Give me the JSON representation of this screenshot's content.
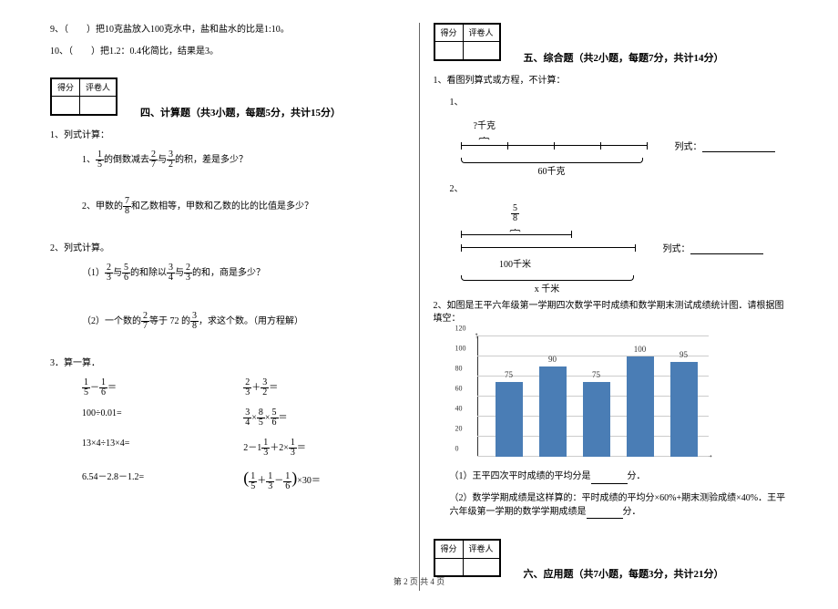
{
  "l": {
    "q9": "9、（　　）把10克盐放入100克水中，盐和盐水的比是1:10。",
    "q10": "10、（　　）把1.2：0.4化简比，结果是3。",
    "score_h1": "得分",
    "score_h2": "评卷人",
    "s4": "四、计算题（共3小题，每题5分，共计15分）",
    "p1": "1、列式计算：",
    "p1_1a": "1、",
    "p1_1b": "的倒数减去",
    "p1_1c": "与",
    "p1_1d": "的积，差是多少？",
    "f1": {
      "n": "1",
      "d": "5"
    },
    "f2": {
      "n": "2",
      "d": "7"
    },
    "f3": {
      "n": "3",
      "d": "2"
    },
    "p1_2a": "2、甲数的",
    "p1_2b": "和乙数相等，甲数和乙数的比的比值是多少？",
    "f4": {
      "n": "7",
      "d": "8"
    },
    "p2": "2、列式计算。",
    "p2_1a": "（1）",
    "p2_1b": "与",
    "p2_1c": "的和除以",
    "p2_1d": "与",
    "p2_1e": "的和，商是多少？",
    "f5": {
      "n": "2",
      "d": "3"
    },
    "f6": {
      "n": "5",
      "d": "6"
    },
    "f7": {
      "n": "3",
      "d": "4"
    },
    "f8": {
      "n": "2",
      "d": "3"
    },
    "p2_2a": "（2）一个数的",
    "p2_2b": "等于 72 的",
    "p2_2c": "，求这个数。（用方程解）",
    "f9": {
      "n": "2",
      "d": "7"
    },
    "f10": {
      "n": "3",
      "d": "8"
    },
    "p3": "3．算一算．",
    "e1l": "＝",
    "f11": {
      "n": "1",
      "d": "5"
    },
    "f12": {
      "n": "1",
      "d": "6"
    },
    "e1r": "＝",
    "f13": {
      "n": "2",
      "d": "3"
    },
    "f14": {
      "n": "3",
      "d": "2"
    },
    "e2l": "100÷0.01=",
    "f15": {
      "n": "3",
      "d": "4"
    },
    "f16": {
      "n": "8",
      "d": "5"
    },
    "f17": {
      "n": "5",
      "d": "6"
    },
    "e3l": "13×4÷13×4=",
    "e3ra": "2－1",
    "e3rb": "＋2×",
    "e3rc": "＝",
    "f18": {
      "n": "1",
      "d": "3"
    },
    "f19": {
      "n": "1",
      "d": "3"
    },
    "e4l": "6.54－2.8－1.2=",
    "e4rb": "×30＝",
    "f20": {
      "n": "1",
      "d": "5"
    },
    "f21": {
      "n": "1",
      "d": "3"
    },
    "f22": {
      "n": "1",
      "d": "6"
    }
  },
  "r": {
    "score_h1": "得分",
    "score_h2": "评卷人",
    "s5": "五、综合题（共2小题，每题7分，共计14分）",
    "p1": "1、看图列算式或方程，不计算：",
    "d1_lab": "1、",
    "d1_top": "?千克",
    "d1_bot": "60千克",
    "d1_expr": "列式：",
    "d2_lab": "2、",
    "d2_top_n": "5",
    "d2_top_d": "8",
    "d2_bot": "100千米",
    "d2_x": "x 千米",
    "d2_expr": "列式：",
    "p2": "2、如图是王平六年级第一学期四次数学平时成绩和数学期末测试成绩统计图．请根据图填空：",
    "chart": {
      "ymax": 120,
      "ytick": 20,
      "bar_color": "#4a7db5",
      "grid_color": "#cccccc",
      "axis_color": "#333333",
      "bars": [
        {
          "v": 75,
          "l": "75"
        },
        {
          "v": 90,
          "l": "90"
        },
        {
          "v": 75,
          "l": "75"
        },
        {
          "v": 100,
          "l": "100"
        },
        {
          "v": 95,
          "l": "95"
        }
      ]
    },
    "p2_1a": "（1）王平四次平时成绩的平均分是",
    "p2_1b": "分．",
    "p2_2a": "（2）数学学期成绩是这样算的：平时成绩的平均分×60%+期末测验成绩×40%．王平六年级第一学期的数学学期成绩是",
    "p2_2b": "分．",
    "s6": "六、应用题（共7小题，每题3分，共计21分）"
  },
  "footer": "第 2 页 共 4 页"
}
